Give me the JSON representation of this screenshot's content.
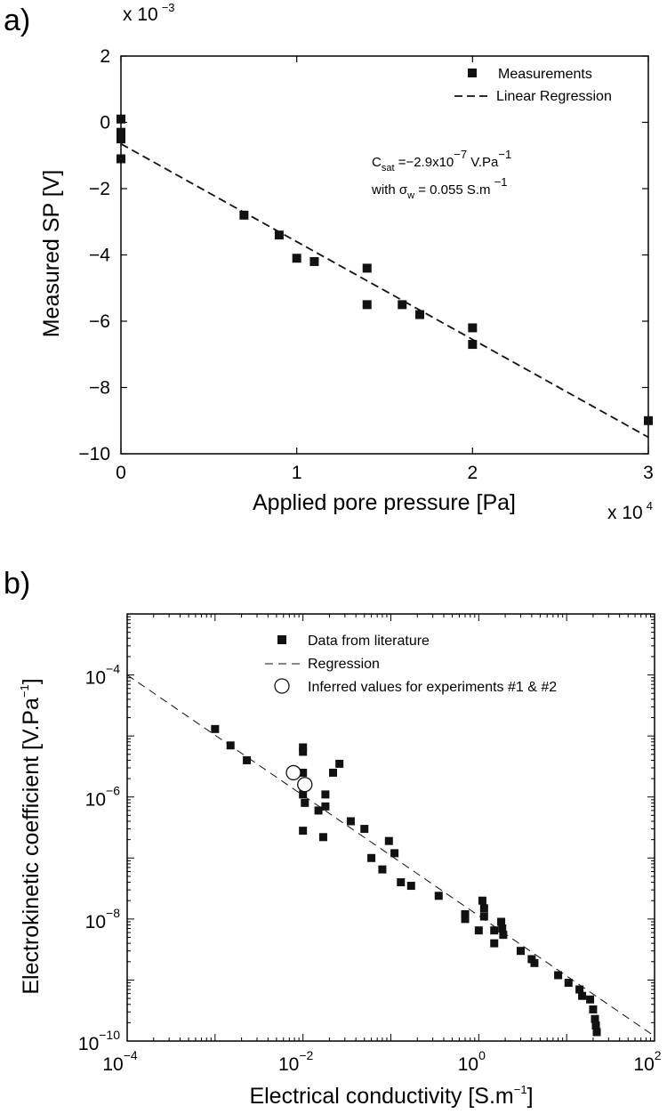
{
  "panels": {
    "a_label": "a)",
    "b_label": "b)"
  },
  "chart_data": [
    {
      "type": "scatter",
      "title": "",
      "xlabel": "Applied pore pressure [Pa]",
      "ylabel": "Measured SP [V]",
      "x_scale_label": "x 10",
      "x_scale_exp": "4",
      "y_scale_label": "x 10",
      "y_scale_exp": "−3",
      "xlim": [
        0,
        30000
      ],
      "ylim": [
        -0.01,
        0.002
      ],
      "xticks": [
        0,
        10000,
        20000,
        30000
      ],
      "xtick_labels": [
        "0",
        "1",
        "2",
        "3"
      ],
      "yticks": [
        0.002,
        0,
        -0.002,
        -0.004,
        -0.006,
        -0.008,
        -0.01
      ],
      "ytick_labels": [
        "2",
        "0",
        "−2",
        "−4",
        "−6",
        "−8",
        "−10"
      ],
      "grid": false,
      "legend_position": "top-right",
      "series": [
        {
          "name": "Measurements",
          "marker": "square",
          "points": [
            [
              0,
              0.0001
            ],
            [
              0,
              -0.0003
            ],
            [
              0,
              -0.0005
            ],
            [
              0,
              -0.0011
            ],
            [
              7000,
              -0.0028
            ],
            [
              9000,
              -0.0034
            ],
            [
              10000,
              -0.0041
            ],
            [
              11000,
              -0.0042
            ],
            [
              14000,
              -0.0044
            ],
            [
              14000,
              -0.0055
            ],
            [
              16000,
              -0.0055
            ],
            [
              17000,
              -0.0058
            ],
            [
              20000,
              -0.0062
            ],
            [
              20000,
              -0.0067
            ],
            [
              30000,
              -0.009
            ]
          ]
        },
        {
          "name": "Linear Regression",
          "style": "dashed",
          "points": [
            [
              0,
              -0.00065
            ],
            [
              30000,
              -0.0095
            ]
          ]
        }
      ],
      "annotations": {
        "c_sat": {
          "c": "C",
          "sub": "sat",
          "eq": " =−2.9x10",
          "exp": "−7",
          "unit": "  V.Pa",
          "unit_exp": "−1"
        },
        "sigma_w": {
          "with": "with ",
          "sigma": "σ",
          "sub": "w",
          "eq": " = 0.055 S.m ",
          "exp": "−1"
        }
      }
    },
    {
      "type": "scatter",
      "title": "",
      "xlabel": "Electrical conductivity [S.m",
      "xlabel_exp": "−1",
      "xlabel_end": "]",
      "ylabel": "Electrokinetic coefficient [V.Pa",
      "ylabel_exp": "−1",
      "ylabel_end": "]",
      "x_log": true,
      "y_log": true,
      "xlim": [
        0.0001,
        100
      ],
      "ylim": [
        1e-10,
        0.001
      ],
      "xticks": [
        {
          "value": 0.0001,
          "base": "10",
          "exp": "−4"
        },
        {
          "value": 0.01,
          "base": "10",
          "exp": "−2"
        },
        {
          "value": 1,
          "base": "10",
          "exp": "0"
        },
        {
          "value": 100,
          "base": "10",
          "exp": "2"
        }
      ],
      "yticks": [
        {
          "value": 1e-10,
          "base": "10",
          "exp": "−10"
        },
        {
          "value": 1e-08,
          "base": "10",
          "exp": "−8"
        },
        {
          "value": 1e-06,
          "base": "10",
          "exp": "−6"
        },
        {
          "value": 0.0001,
          "base": "10",
          "exp": "−4"
        }
      ],
      "grid": false,
      "legend_position": "top",
      "series": [
        {
          "name": "Data from literature",
          "marker": "square",
          "points": [
            [
              0.001,
              1.3e-05
            ],
            [
              0.0015,
              7e-06
            ],
            [
              0.0023,
              4e-06
            ],
            [
              0.01,
              6.5e-06
            ],
            [
              0.01,
              5.5e-06
            ],
            [
              0.01,
              2.5e-06
            ],
            [
              0.01,
              1.1e-06
            ],
            [
              0.0105,
              8e-07
            ],
            [
              0.01,
              2.8e-07
            ],
            [
              0.015,
              6e-07
            ],
            [
              0.018,
              1.1e-06
            ],
            [
              0.018,
              7e-07
            ],
            [
              0.017,
              2.2e-07
            ],
            [
              0.022,
              2.5e-06
            ],
            [
              0.026,
              3.5e-06
            ],
            [
              0.035,
              4e-07
            ],
            [
              0.05,
              3e-07
            ],
            [
              0.06,
              1e-07
            ],
            [
              0.08,
              6.5e-08
            ],
            [
              0.095,
              1.9e-07
            ],
            [
              0.11,
              1.2e-07
            ],
            [
              0.13,
              4e-08
            ],
            [
              0.17,
              3.5e-08
            ],
            [
              0.35,
              2.4e-08
            ],
            [
              0.7,
              1.2e-08
            ],
            [
              0.7,
              1e-08
            ],
            [
              1,
              6.5e-09
            ],
            [
              1.1,
              2e-08
            ],
            [
              1.15,
              1.5e-08
            ],
            [
              1.15,
              1.1e-08
            ],
            [
              1.5,
              6.5e-09
            ],
            [
              1.5,
              4e-09
            ],
            [
              1.8,
              9e-09
            ],
            [
              1.85,
              7e-09
            ],
            [
              1.9,
              5.5e-09
            ],
            [
              3,
              3e-09
            ],
            [
              4,
              2.2e-09
            ],
            [
              4.3,
              1.9e-09
            ],
            [
              8,
              1.2e-09
            ],
            [
              10.5,
              9e-10
            ],
            [
              14,
              7e-10
            ],
            [
              15,
              5.5e-10
            ],
            [
              18.5,
              4.8e-10
            ],
            [
              20,
              3.3e-10
            ],
            [
              21,
              2.3e-10
            ],
            [
              21.5,
              1.8e-10
            ],
            [
              22,
              1.4e-10
            ]
          ]
        },
        {
          "name": "Regression",
          "style": "dashed",
          "points": [
            [
              0.0001,
              0.0001
            ],
            [
              100,
              1.2e-10
            ]
          ]
        },
        {
          "name": "Inferred values for experiments #1 & #2",
          "marker": "open-circle",
          "points": [
            [
              0.0078,
              2.5e-06
            ],
            [
              0.0105,
              1.6e-06
            ]
          ]
        }
      ]
    }
  ]
}
